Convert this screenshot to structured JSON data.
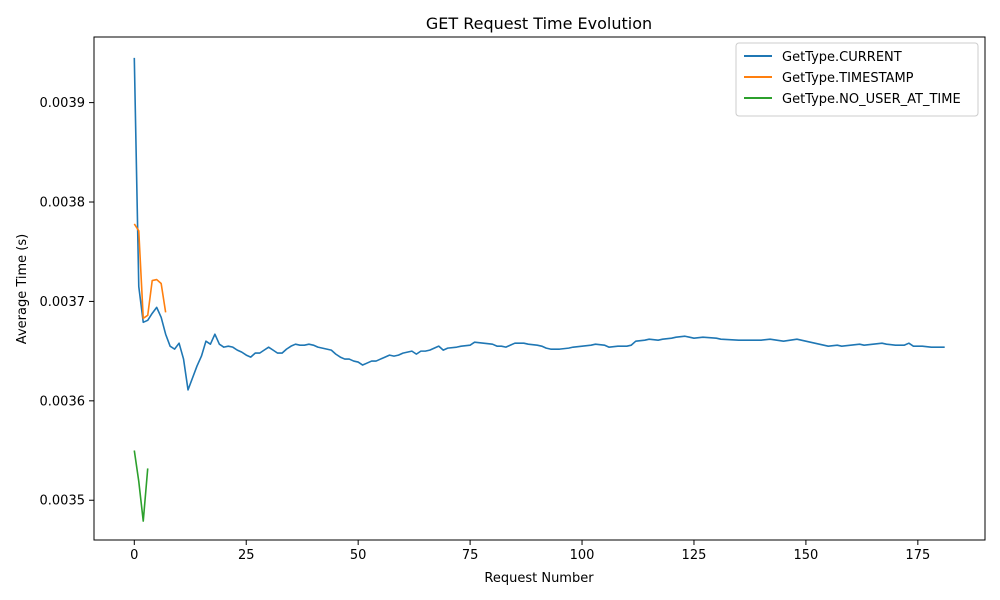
{
  "chart_data": {
    "type": "line",
    "title": "GET Request Time Evolution",
    "xlabel": "Request Number",
    "ylabel": "Average Time (s)",
    "xlim": [
      -9,
      190
    ],
    "ylim": [
      0.00346,
      0.003966
    ],
    "x_ticks": [
      0,
      25,
      50,
      75,
      100,
      125,
      150,
      175
    ],
    "y_ticks": [
      0.0035,
      0.0036,
      0.0037,
      0.0038,
      0.0039
    ],
    "y_tick_labels": [
      "0.0035",
      "0.0036",
      "0.0037",
      "0.0038",
      "0.0039"
    ],
    "grid": false,
    "legend_position": "top-right",
    "series": [
      {
        "name": "GetType.CURRENT",
        "color": "#1f77b4",
        "points": [
          [
            0,
            0.003945
          ],
          [
            1,
            0.003715
          ],
          [
            2,
            0.003679
          ],
          [
            3,
            0.003681
          ],
          [
            4,
            0.003688
          ],
          [
            5,
            0.003694
          ],
          [
            6,
            0.003684
          ],
          [
            7,
            0.003667
          ],
          [
            8,
            0.003655
          ],
          [
            9,
            0.003652
          ],
          [
            10,
            0.003658
          ],
          [
            11,
            0.003642
          ],
          [
            12,
            0.003611
          ],
          [
            13,
            0.003623
          ],
          [
            14,
            0.003635
          ],
          [
            15,
            0.003645
          ],
          [
            16,
            0.00366
          ],
          [
            17,
            0.003657
          ],
          [
            18,
            0.003667
          ],
          [
            19,
            0.003657
          ],
          [
            20,
            0.003654
          ],
          [
            21,
            0.003655
          ],
          [
            22,
            0.003654
          ],
          [
            23,
            0.003651
          ],
          [
            24,
            0.003649
          ],
          [
            25,
            0.003646
          ],
          [
            26,
            0.003644
          ],
          [
            27,
            0.003648
          ],
          [
            28,
            0.003648
          ],
          [
            29,
            0.003651
          ],
          [
            30,
            0.003654
          ],
          [
            31,
            0.003651
          ],
          [
            32,
            0.003648
          ],
          [
            33,
            0.003648
          ],
          [
            34,
            0.003652
          ],
          [
            35,
            0.003655
          ],
          [
            36,
            0.003657
          ],
          [
            37,
            0.003656
          ],
          [
            38,
            0.003656
          ],
          [
            39,
            0.003657
          ],
          [
            40,
            0.003656
          ],
          [
            41,
            0.003654
          ],
          [
            42,
            0.003653
          ],
          [
            43,
            0.003652
          ],
          [
            44,
            0.003651
          ],
          [
            45,
            0.003647
          ],
          [
            46,
            0.003644
          ],
          [
            47,
            0.003642
          ],
          [
            48,
            0.003642
          ],
          [
            49,
            0.00364
          ],
          [
            50,
            0.003639
          ],
          [
            51,
            0.003636
          ],
          [
            52,
            0.003638
          ],
          [
            53,
            0.00364
          ],
          [
            54,
            0.00364
          ],
          [
            55,
            0.003642
          ],
          [
            56,
            0.003644
          ],
          [
            57,
            0.003646
          ],
          [
            58,
            0.003645
          ],
          [
            59,
            0.003646
          ],
          [
            60,
            0.003648
          ],
          [
            61,
            0.003649
          ],
          [
            62,
            0.00365
          ],
          [
            63,
            0.003647
          ],
          [
            64,
            0.00365
          ],
          [
            65,
            0.00365
          ],
          [
            66,
            0.003651
          ],
          [
            67,
            0.003653
          ],
          [
            68,
            0.003655
          ],
          [
            69,
            0.003651
          ],
          [
            70,
            0.003653
          ],
          [
            72,
            0.003654
          ],
          [
            73,
            0.003655
          ],
          [
            75,
            0.003656
          ],
          [
            76,
            0.003659
          ],
          [
            78,
            0.003658
          ],
          [
            80,
            0.003657
          ],
          [
            81,
            0.003655
          ],
          [
            82,
            0.003655
          ],
          [
            83,
            0.003654
          ],
          [
            84,
            0.003656
          ],
          [
            85,
            0.003658
          ],
          [
            87,
            0.003658
          ],
          [
            88,
            0.003657
          ],
          [
            90,
            0.003656
          ],
          [
            91,
            0.003655
          ],
          [
            92,
            0.003653
          ],
          [
            93,
            0.003652
          ],
          [
            95,
            0.003652
          ],
          [
            97,
            0.003653
          ],
          [
            98,
            0.003654
          ],
          [
            100,
            0.003655
          ],
          [
            102,
            0.003656
          ],
          [
            103,
            0.003657
          ],
          [
            105,
            0.003656
          ],
          [
            106,
            0.003654
          ],
          [
            108,
            0.003655
          ],
          [
            110,
            0.003655
          ],
          [
            111,
            0.003656
          ],
          [
            112,
            0.00366
          ],
          [
            114,
            0.003661
          ],
          [
            115,
            0.003662
          ],
          [
            117,
            0.003661
          ],
          [
            118,
            0.003662
          ],
          [
            120,
            0.003663
          ],
          [
            121,
            0.003664
          ],
          [
            123,
            0.003665
          ],
          [
            124,
            0.003664
          ],
          [
            125,
            0.003663
          ],
          [
            127,
            0.003664
          ],
          [
            130,
            0.003663
          ],
          [
            131,
            0.003662
          ],
          [
            135,
            0.003661
          ],
          [
            140,
            0.003661
          ],
          [
            142,
            0.003662
          ],
          [
            145,
            0.00366
          ],
          [
            148,
            0.003662
          ],
          [
            150,
            0.00366
          ],
          [
            151,
            0.003659
          ],
          [
            153,
            0.003657
          ],
          [
            155,
            0.003655
          ],
          [
            157,
            0.003656
          ],
          [
            158,
            0.003655
          ],
          [
            160,
            0.003656
          ],
          [
            162,
            0.003657
          ],
          [
            163,
            0.003656
          ],
          [
            165,
            0.003657
          ],
          [
            167,
            0.003658
          ],
          [
            168,
            0.003657
          ],
          [
            170,
            0.003656
          ],
          [
            172,
            0.003656
          ],
          [
            173,
            0.003658
          ],
          [
            174,
            0.003655
          ],
          [
            176,
            0.003655
          ],
          [
            178,
            0.003654
          ],
          [
            180,
            0.003654
          ],
          [
            181,
            0.003654
          ]
        ]
      },
      {
        "name": "GetType.TIMESTAMP",
        "color": "#ff7f0e",
        "points": [
          [
            0,
            0.003778
          ],
          [
            1,
            0.003771
          ],
          [
            2,
            0.003683
          ],
          [
            3,
            0.003686
          ],
          [
            4,
            0.003721
          ],
          [
            5,
            0.003722
          ],
          [
            6,
            0.003718
          ],
          [
            7,
            0.003689
          ]
        ]
      },
      {
        "name": "GetType.NO_USER_AT_TIME",
        "color": "#2ca02c",
        "points": [
          [
            0,
            0.00355
          ],
          [
            1,
            0.003519
          ],
          [
            2,
            0.003479
          ],
          [
            3,
            0.003532
          ]
        ]
      }
    ]
  }
}
